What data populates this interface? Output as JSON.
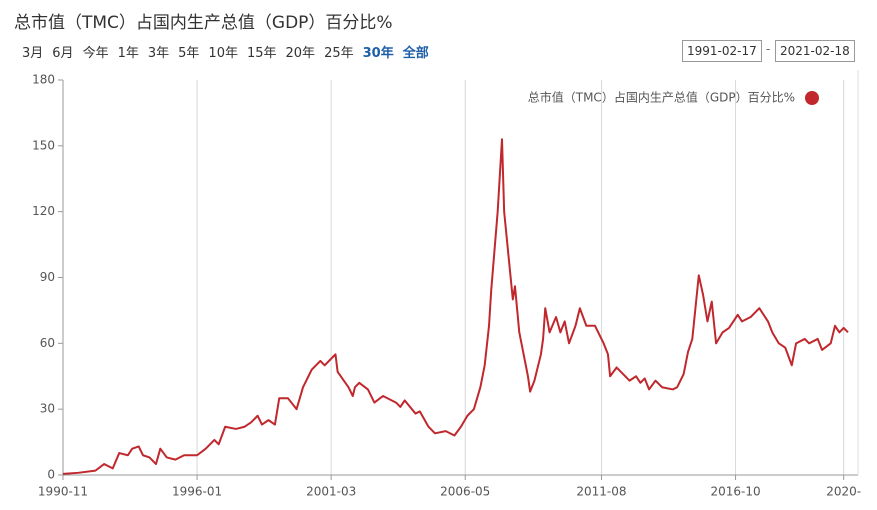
{
  "chart_data": {
    "type": "line",
    "title": "总市值（TMC）占国内生产总值（GDP）百分比%",
    "range_selector": [
      {
        "label": "3月",
        "active": false
      },
      {
        "label": "6月",
        "active": false
      },
      {
        "label": "今年",
        "active": false
      },
      {
        "label": "1年",
        "active": false
      },
      {
        "label": "3年",
        "active": false
      },
      {
        "label": "5年",
        "active": false
      },
      {
        "label": "10年",
        "active": false
      },
      {
        "label": "15年",
        "active": false
      },
      {
        "label": "20年",
        "active": false
      },
      {
        "label": "25年",
        "active": false
      },
      {
        "label": "30年",
        "active": true
      },
      {
        "label": "全部",
        "active": true
      }
    ],
    "date_range": {
      "from": "1991-02-17",
      "separator": "-",
      "to": "2021-02-18"
    },
    "x": [
      "1990-11",
      "1991-06",
      "1992-02",
      "1992-06",
      "1992-10",
      "1993-01",
      "1993-05",
      "1993-07",
      "1993-10",
      "1993-12",
      "1994-03",
      "1994-06",
      "1994-08",
      "1994-11",
      "1995-03",
      "1995-07",
      "1996-01",
      "1996-05",
      "1996-09",
      "1996-11",
      "1997-02",
      "1997-07",
      "1997-11",
      "1998-02",
      "1998-05",
      "1998-07",
      "1998-10",
      "1999-01",
      "1999-03",
      "1999-07",
      "1999-11",
      "2000-02",
      "2000-06",
      "2000-10",
      "2000-12",
      "2001-04",
      "2001-05",
      "2001-06",
      "2001-11",
      "2002-01",
      "2002-02",
      "2002-04",
      "2002-08",
      "2002-11",
      "2003-03",
      "2003-09",
      "2003-11",
      "2004-01",
      "2004-06",
      "2004-08",
      "2004-12",
      "2005-03",
      "2005-08",
      "2005-12",
      "2006-03",
      "2006-06",
      "2006-09",
      "2006-12",
      "2007-02",
      "2007-04",
      "2007-05",
      "2007-08",
      "2007-10",
      "2007-11",
      "2008-01",
      "2008-03",
      "2008-04",
      "2008-06",
      "2008-07",
      "2008-10",
      "2008-11",
      "2009-01",
      "2009-04",
      "2009-05",
      "2009-06",
      "2009-08",
      "2009-11",
      "2010-01",
      "2010-03",
      "2010-05",
      "2010-08",
      "2010-10",
      "2011-01",
      "2011-05",
      "2011-09",
      "2011-11",
      "2011-12",
      "2012-03",
      "2012-06",
      "2012-09",
      "2012-12",
      "2013-02",
      "2013-04",
      "2013-06",
      "2013-09",
      "2013-12",
      "2014-05",
      "2014-07",
      "2014-10",
      "2014-12",
      "2015-02",
      "2015-05",
      "2015-07",
      "2015-09",
      "2015-11",
      "2016-01",
      "2016-04",
      "2016-07",
      "2016-11",
      "2017-01",
      "2017-05",
      "2017-09",
      "2018-01",
      "2018-03",
      "2018-06",
      "2018-09",
      "2018-12",
      "2019-02",
      "2019-06",
      "2019-08",
      "2019-12",
      "2020-02",
      "2020-06",
      "2020-08",
      "2020-10",
      "2020-12",
      "2021-02"
    ],
    "series": [
      {
        "name": "总市值（TMC）占国内生产总值（GDP）百分比%",
        "color": "#c0282d",
        "values": [
          0.5,
          1,
          2,
          5,
          3,
          10,
          9,
          12,
          13,
          9,
          8,
          5,
          12,
          8,
          7,
          9,
          9,
          12,
          16,
          14,
          22,
          21,
          22,
          24,
          27,
          23,
          25,
          23,
          35,
          35,
          30,
          40,
          48,
          52,
          50,
          54,
          55,
          47,
          40,
          36,
          40,
          42,
          39,
          33,
          36,
          33,
          31,
          34,
          28,
          29,
          22,
          19,
          20,
          18,
          22,
          27,
          30,
          40,
          50,
          68,
          84,
          120,
          153,
          120,
          100,
          80,
          86,
          65,
          60,
          45,
          38,
          43,
          55,
          62,
          76,
          65,
          72,
          65,
          70,
          60,
          68,
          76,
          68,
          68,
          60,
          55,
          45,
          49,
          46,
          43,
          45,
          42,
          44,
          39,
          43,
          40,
          39,
          40,
          46,
          56,
          62,
          91,
          82,
          70,
          79,
          60,
          65,
          67,
          73,
          70,
          72,
          76,
          70,
          65,
          60,
          58,
          50,
          60,
          62,
          60,
          62,
          57,
          60,
          68,
          65,
          67,
          65
        ]
      }
    ],
    "xlim": [
      "1990-11",
      "2021-02"
    ],
    "xticks": [
      "1990-11",
      "1996-01",
      "2001-03",
      "2006-05",
      "2011-08",
      "2016-10",
      {
        "value": "2020-12",
        "label": "2020-"
      }
    ],
    "ylim": [
      0,
      180
    ],
    "yticks": [
      0,
      30,
      60,
      90,
      120,
      150,
      180
    ],
    "grid": "x",
    "legend": "top-right"
  }
}
